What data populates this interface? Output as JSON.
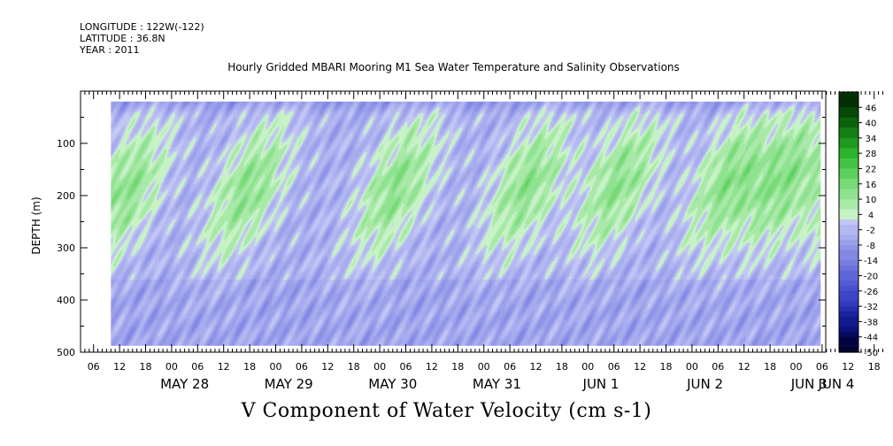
{
  "header": {
    "longitude": "LONGITUDE : 122W(-122)",
    "latitude": "LATITUDE : 36.8N",
    "year": "YEAR : 2011"
  },
  "chart_data": {
    "type": "heatmap",
    "title": "Hourly Gridded MBARI Mooring M1 Sea Water Temperature and Salinity Observations",
    "bottom_title": "V Component of Water Velocity (cm s-1)",
    "ylabel": "DEPTH (m)",
    "ylim": [
      500,
      0
    ],
    "yticks": [
      100,
      200,
      300,
      400,
      500
    ],
    "xlim": [
      "2011-05-27T03:00",
      "2011-06-03T20:00"
    ],
    "data_start": "2011-05-27T10:00",
    "data_depth_range": [
      20,
      488
    ],
    "hour_tick_labels": [
      "06",
      "12",
      "18",
      "00",
      "06",
      "12",
      "18",
      "00",
      "06",
      "12",
      "18",
      "00",
      "06",
      "12",
      "18",
      "00",
      "06",
      "12",
      "18",
      "00",
      "06",
      "12",
      "18",
      "00",
      "06",
      "12",
      "18",
      "00",
      "06",
      "12",
      "18",
      "00"
    ],
    "day_labels": [
      "MAY 28",
      "MAY 29",
      "MAY 30",
      "MAY 31",
      "JUN  1",
      "JUN  2",
      "JUN  3",
      "JUN  4"
    ],
    "colorbar": {
      "labels": [
        46,
        40,
        34,
        28,
        22,
        16,
        10,
        4,
        -2,
        -8,
        -14,
        -20,
        -26,
        -32,
        -38,
        -44,
        -50
      ],
      "levels_low": -50,
      "levels_high": 52,
      "step": 2
    }
  }
}
